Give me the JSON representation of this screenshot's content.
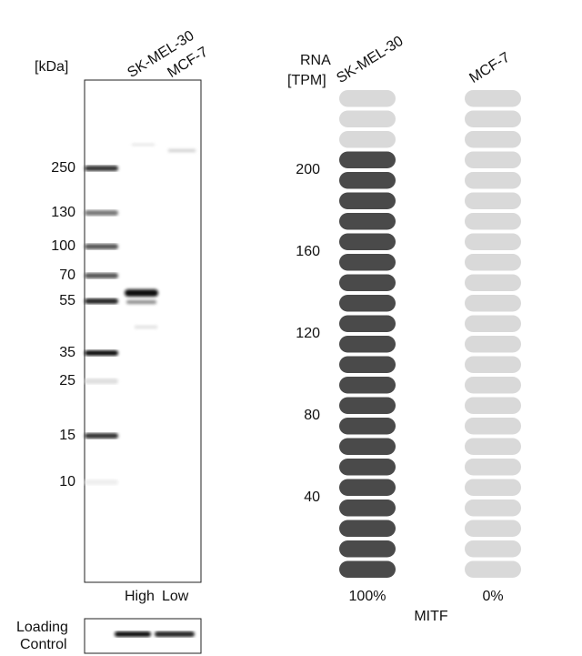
{
  "western_blot": {
    "unit_label": "[kDa]",
    "lanes": [
      "SK-MEL-30",
      "MCF-7"
    ],
    "markers": [
      "250",
      "130",
      "100",
      "70",
      "55",
      "35",
      "25",
      "15",
      "10"
    ],
    "lane_levels": [
      "High",
      "Low"
    ],
    "loading_control": [
      "Loading",
      "Control"
    ]
  },
  "rna": {
    "axis_label": [
      "RNA",
      "[TPM]"
    ],
    "cell_lines": [
      "SK-MEL-30",
      "MCF-7"
    ],
    "ylim": [
      0,
      240
    ],
    "yticks": [
      200,
      160,
      120,
      80,
      40
    ],
    "tpm": [
      210,
      0
    ],
    "percentages": [
      "100%",
      "0%"
    ],
    "gene": "MITF",
    "colors": {
      "filled": "#4a4a4a",
      "empty": "#d9d9d9"
    }
  }
}
